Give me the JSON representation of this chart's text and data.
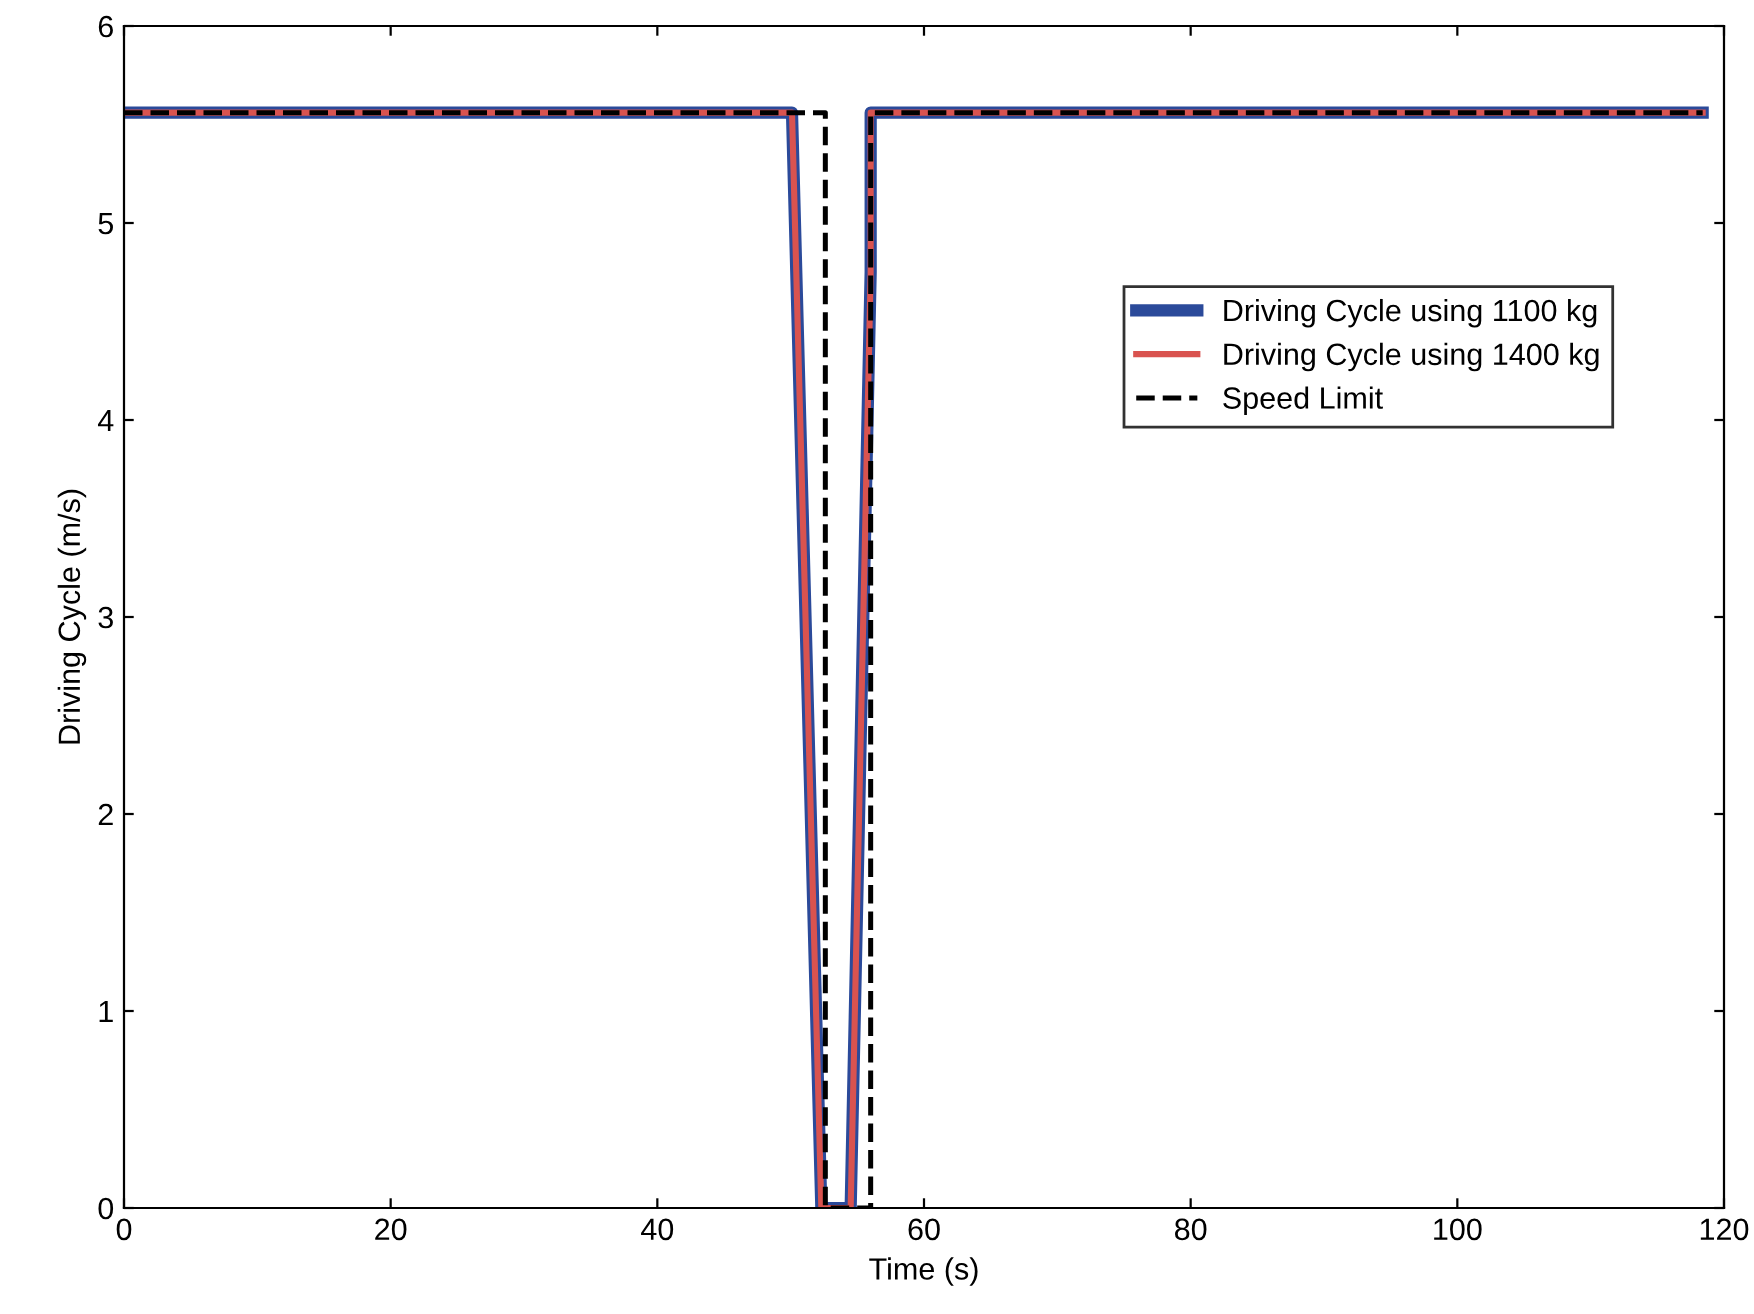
{
  "chart_data": {
    "type": "line",
    "xlabel": "Time (s)",
    "ylabel": "Driving Cycle (m/s)",
    "xlim": [
      0,
      120
    ],
    "ylim": [
      0,
      6
    ],
    "xticks": [
      0,
      20,
      40,
      60,
      80,
      100,
      120
    ],
    "yticks": [
      0,
      1,
      2,
      3,
      4,
      5,
      6
    ],
    "grid": false,
    "legend": "right",
    "series": [
      {
        "name": "Driving Cycle using 1100 kg",
        "color": "#2b4a9a",
        "line_style": "solid",
        "x": [
          0,
          50.1,
          52.3,
          54.5,
          56.0,
          56.0,
          118.4
        ],
        "values": [
          5.56,
          5.56,
          0,
          0,
          4.75,
          5.56,
          5.56
        ]
      },
      {
        "name": "Driving Cycle using 1400 kg",
        "color": "#d9534f",
        "line_style": "solid",
        "x": [
          0,
          50.1,
          52.3,
          54.5,
          56.0,
          56.0,
          118.4
        ],
        "values": [
          5.56,
          5.56,
          0,
          0,
          4.75,
          5.56,
          5.56
        ]
      },
      {
        "name": "Speed Limit",
        "color": "#000000",
        "line_style": "dashed",
        "x": [
          0,
          52.6,
          52.6,
          56.0,
          56.0,
          118.4
        ],
        "values": [
          5.56,
          5.56,
          0,
          0,
          5.56,
          5.56
        ]
      }
    ]
  }
}
